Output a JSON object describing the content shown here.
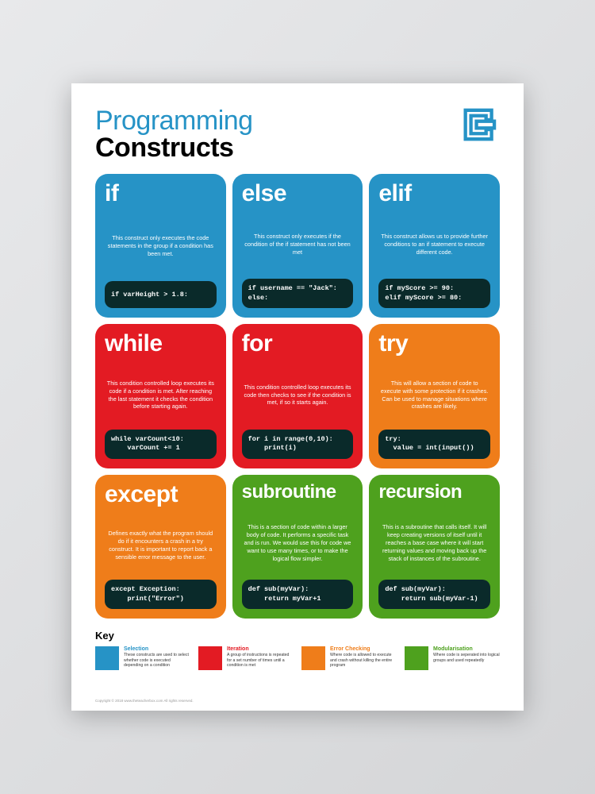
{
  "title": {
    "line1": "Programming",
    "line2": "Constructs",
    "line1_color": "#2693c6",
    "line2_color": "#000000"
  },
  "colors": {
    "selection": "#2693c6",
    "iteration": "#e31b23",
    "error": "#ef7d1a",
    "modular": "#4ea11e",
    "code_bg": "#0a2a2a",
    "poster_bg": "#ffffff"
  },
  "cards": [
    {
      "title": "if",
      "color": "#2693c6",
      "desc": "This construct only executes the code statements in the group if a condition has been met.",
      "code": "if varHeight > 1.8:"
    },
    {
      "title": "else",
      "color": "#2693c6",
      "desc": "This construct only executes if the condition of the if statement has not been met",
      "code": "if username == \"Jack\":\nelse:"
    },
    {
      "title": "elif",
      "color": "#2693c6",
      "desc": "This construct allows us to provide further conditions to an if statement to execute different code.",
      "code": "if myScore >= 90:\nelif myScore >= 80:"
    },
    {
      "title": "while",
      "color": "#e31b23",
      "desc": "This condition controlled loop executes its code if a condition is met. After reaching the last statement it checks the condition before starting again.",
      "code": "while varCount<10:\n    varCount += 1"
    },
    {
      "title": "for",
      "color": "#e31b23",
      "desc": "This condition controlled loop executes its code then checks to see if the condition is met, if so it starts again.",
      "code": "for i in range(0,10):\n    print(i)"
    },
    {
      "title": "try",
      "color": "#ef7d1a",
      "desc": "This will allow a section of code to execute with some protection if it crashes. Can be used to manage situations where crashes are likely.",
      "code": "try:\n  value = int(input())"
    },
    {
      "title": "except",
      "color": "#ef7d1a",
      "desc": "Defines exactly what the program should do if it encounters a crash in a try construct. It is important to report back a sensible error message to the user.",
      "code": "except Exception:\n    print(\"Error\")"
    },
    {
      "title": "subroutine",
      "title_small": true,
      "color": "#4ea11e",
      "desc": "This is a section of code within a larger body of code. It performs a specific task and is run. We would use this for code we want to use many times, or to make the logical flow simpler.",
      "code": "def sub(myVar):\n    return myVar+1"
    },
    {
      "title": "recursion",
      "title_small": true,
      "color": "#4ea11e",
      "desc": "This is a subroutine that calls itself. It will keep creating versions of itself until it reaches a base case where it will start returning values and moving back up the stack of instances of the subroutine.",
      "code": "def sub(myVar):\n    return sub(myVar-1)"
    }
  ],
  "key": {
    "title": "Key",
    "items": [
      {
        "label": "Selection",
        "color": "#2693c6",
        "label_color": "#2693c6",
        "desc": "These constructs are used to select whether code is executed depending on a condition"
      },
      {
        "label": "Iteration",
        "color": "#e31b23",
        "label_color": "#e31b23",
        "desc": "A group of instructions is repeated for a set number of times until a condition is met"
      },
      {
        "label": "Error Checking",
        "color": "#ef7d1a",
        "label_color": "#ef7d1a",
        "desc": "Where code is allowed to execute and crash without killing the entire program"
      },
      {
        "label": "Modularisation",
        "color": "#4ea11e",
        "label_color": "#4ea11e",
        "desc": "Where code is seperated into logical groups and used repeatedly"
      }
    ]
  },
  "footer": "Copyright © 2018 www.theteacherbox.com All rights reserved."
}
